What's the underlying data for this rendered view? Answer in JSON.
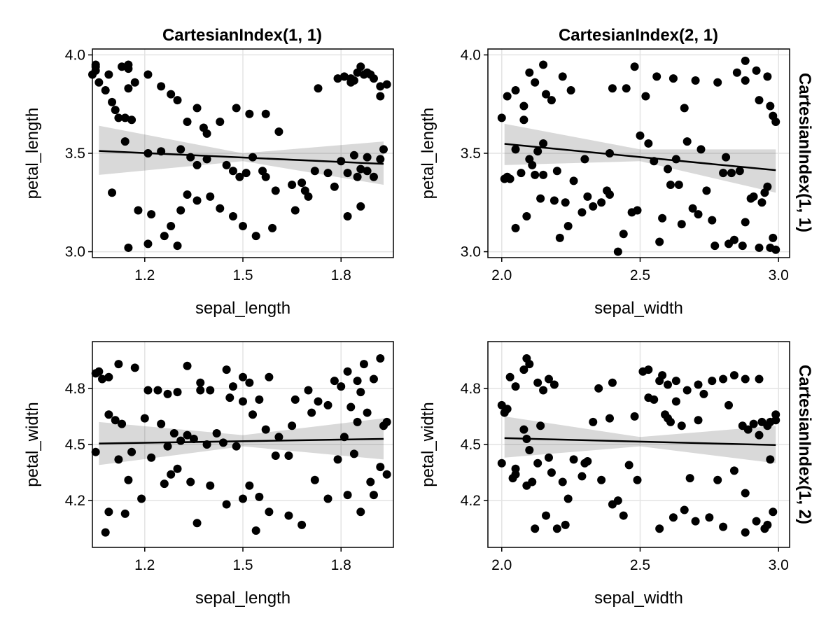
{
  "figure": {
    "column_titles": [
      "CartesianIndex(1, 1)",
      "CartesianIndex(2, 1)"
    ],
    "row_titles": [
      "CartesianIndex(1, 1)",
      "CartesianIndex(1, 2)"
    ]
  },
  "chart_data": [
    {
      "type": "scatter",
      "panel": "top-left",
      "xlabel": "sepal_length",
      "ylabel": "petal_length",
      "xlim": [
        1.04,
        1.96
      ],
      "ylim": [
        2.97,
        4.03
      ],
      "xticks": [
        1.2,
        1.5,
        1.8
      ],
      "xtick_labels": [
        "1.2",
        "1.5",
        "1.8"
      ],
      "yticks": [
        3.0,
        3.5,
        4.0
      ],
      "ytick_labels": [
        "3.0",
        "3.5",
        "4.0"
      ],
      "grid": true,
      "fit_line": [
        [
          1.06,
          3.512
        ],
        [
          1.93,
          3.446
        ]
      ],
      "confidence_band": {
        "x": [
          1.06,
          1.5,
          1.93
        ],
        "lower": [
          3.39,
          3.46,
          3.34
        ],
        "upper": [
          3.64,
          3.5,
          3.56
        ]
      },
      "x": [
        1.05,
        1.06,
        1.08,
        1.1,
        1.11,
        1.12,
        1.14,
        1.15,
        1.15,
        1.13,
        1.09,
        1.04,
        1.05,
        1.05,
        1.15,
        1.17,
        1.21,
        1.25,
        1.28,
        1.3,
        1.33,
        1.36,
        1.38,
        1.39,
        1.43,
        1.48,
        1.52,
        1.57,
        1.61,
        1.73,
        1.79,
        1.83,
        1.87,
        1.9,
        1.92,
        1.84,
        1.81,
        1.92,
        1.94,
        1.89,
        1.85,
        1.83,
        1.88,
        1.86,
        1.14,
        1.16,
        1.21,
        1.25,
        1.31,
        1.34,
        1.36,
        1.39,
        1.45,
        1.47,
        1.49,
        1.51,
        1.53,
        1.56,
        1.57,
        1.6,
        1.65,
        1.68,
        1.72,
        1.76,
        1.8,
        1.84,
        1.88,
        1.93,
        1.92,
        1.1,
        1.18,
        1.22,
        1.28,
        1.31,
        1.33,
        1.36,
        1.4,
        1.43,
        1.47,
        1.5,
        1.54,
        1.59,
        1.66,
        1.7,
        1.69,
        1.78,
        1.82,
        1.85,
        1.86,
        1.88,
        1.9,
        1.86,
        1.82,
        1.15,
        1.21,
        1.26,
        1.3
      ],
      "y": [
        3.94,
        3.86,
        3.82,
        3.76,
        3.72,
        3.68,
        3.68,
        3.95,
        3.93,
        3.94,
        3.9,
        3.9,
        3.95,
        3.92,
        3.83,
        3.86,
        3.9,
        3.84,
        3.8,
        3.77,
        3.66,
        3.73,
        3.63,
        3.6,
        3.66,
        3.73,
        3.7,
        3.7,
        3.61,
        3.83,
        3.88,
        3.86,
        3.9,
        3.88,
        3.84,
        3.87,
        3.89,
        3.79,
        3.85,
        3.9,
        3.91,
        3.88,
        3.91,
        3.94,
        3.56,
        3.67,
        3.5,
        3.51,
        3.52,
        3.48,
        3.44,
        3.47,
        3.44,
        3.41,
        3.38,
        3.4,
        3.48,
        3.41,
        3.38,
        3.31,
        3.34,
        3.35,
        3.41,
        3.4,
        3.46,
        3.49,
        3.48,
        3.52,
        3.47,
        3.3,
        3.21,
        3.19,
        3.13,
        3.21,
        3.29,
        3.26,
        3.28,
        3.22,
        3.18,
        3.13,
        3.08,
        3.12,
        3.21,
        3.28,
        3.31,
        3.33,
        3.4,
        3.38,
        3.42,
        3.41,
        3.38,
        3.23,
        3.18,
        3.02,
        3.04,
        3.08,
        3.03
      ]
    },
    {
      "type": "scatter",
      "panel": "top-right",
      "xlabel": "sepal_width",
      "ylabel": "petal_length",
      "xlim": [
        1.95,
        3.04
      ],
      "ylim": [
        2.97,
        4.03
      ],
      "xticks": [
        2.0,
        2.5,
        3.0
      ],
      "xtick_labels": [
        "2.0",
        "2.5",
        "3.0"
      ],
      "yticks": [
        3.0,
        3.5,
        4.0
      ],
      "ytick_labels": [
        "3.0",
        "3.5",
        "4.0"
      ],
      "grid": true,
      "fit_line": [
        [
          2.01,
          3.548
        ],
        [
          2.99,
          3.414
        ]
      ],
      "confidence_band": {
        "x": [
          2.01,
          2.5,
          2.99
        ],
        "lower": [
          3.44,
          3.46,
          3.3
        ],
        "upper": [
          3.65,
          3.52,
          3.52
        ]
      },
      "x": [
        2.0,
        2.02,
        2.05,
        2.08,
        2.1,
        2.12,
        2.15,
        2.18,
        2.22,
        2.25,
        2.4,
        2.48,
        2.52,
        2.56,
        2.62,
        2.7,
        2.78,
        2.85,
        2.88,
        2.92,
        2.96,
        2.98,
        2.99,
        2.88,
        2.93,
        2.97,
        2.02,
        2.05,
        2.08,
        2.1,
        2.13,
        2.16,
        2.2,
        2.26,
        2.3,
        2.38,
        2.45,
        2.5,
        2.55,
        2.6,
        2.63,
        2.66,
        2.72,
        2.8,
        2.86,
        2.91,
        2.96,
        2.03,
        2.07,
        2.11,
        2.14,
        2.19,
        2.24,
        2.33,
        2.39,
        2.44,
        2.49,
        2.57,
        2.61,
        2.65,
        2.69,
        2.74,
        2.82,
        2.88,
        2.93,
        2.98,
        2.05,
        2.09,
        2.15,
        2.21,
        2.29,
        2.36,
        2.42,
        2.47,
        2.58,
        2.64,
        2.71,
        2.77,
        2.84,
        2.9,
        2.95,
        2.99,
        2.01,
        2.12,
        2.23,
        2.39,
        2.53,
        2.67,
        2.81,
        2.94,
        2.97,
        2.87,
        2.83,
        2.76,
        2.31,
        2.15
      ],
      "y": [
        3.68,
        3.79,
        3.82,
        3.74,
        3.91,
        3.86,
        3.95,
        3.77,
        3.89,
        3.82,
        3.83,
        3.94,
        3.79,
        3.89,
        3.88,
        3.87,
        3.86,
        3.91,
        3.97,
        3.92,
        3.89,
        3.69,
        3.66,
        3.87,
        3.77,
        3.74,
        3.38,
        3.52,
        3.67,
        3.47,
        3.51,
        3.8,
        3.41,
        3.36,
        3.47,
        3.31,
        3.83,
        3.59,
        3.46,
        3.42,
        3.47,
        3.73,
        3.52,
        3.4,
        3.41,
        3.28,
        3.33,
        3.37,
        3.4,
        3.44,
        3.27,
        3.26,
        3.13,
        3.23,
        3.29,
        3.09,
        3.21,
        3.05,
        3.34,
        3.14,
        3.22,
        3.31,
        3.04,
        3.15,
        3.02,
        3.07,
        3.12,
        3.18,
        3.39,
        3.07,
        3.2,
        3.25,
        3.0,
        3.2,
        3.17,
        3.34,
        3.19,
        3.03,
        3.06,
        3.27,
        3.3,
        3.01,
        3.37,
        3.39,
        3.25,
        3.5,
        3.55,
        3.56,
        3.48,
        3.25,
        3.02,
        3.03,
        3.4,
        3.16,
        3.28,
        3.55
      ]
    },
    {
      "type": "scatter",
      "panel": "bottom-left",
      "xlabel": "sepal_length",
      "ylabel": "petal_width",
      "xlim": [
        1.04,
        1.96
      ],
      "ylim": [
        3.95,
        5.05
      ],
      "xticks": [
        1.2,
        1.5,
        1.8
      ],
      "xtick_labels": [
        "1.2",
        "1.5",
        "1.8"
      ],
      "yticks": [
        4.2,
        4.5,
        4.8
      ],
      "ytick_labels": [
        "4.2",
        "4.5",
        "4.8"
      ],
      "grid": true,
      "fit_line": [
        [
          1.06,
          4.505
        ],
        [
          1.93,
          4.53
        ]
      ],
      "confidence_band": {
        "x": [
          1.06,
          1.5,
          1.93
        ],
        "lower": [
          4.39,
          4.49,
          4.42
        ],
        "upper": [
          4.62,
          4.55,
          4.64
        ]
      },
      "x": [
        1.05,
        1.06,
        1.07,
        1.09,
        1.12,
        1.17,
        1.21,
        1.24,
        1.27,
        1.3,
        1.33,
        1.37,
        1.4,
        1.45,
        1.47,
        1.5,
        1.52,
        1.55,
        1.58,
        1.66,
        1.7,
        1.73,
        1.78,
        1.82,
        1.85,
        1.87,
        1.9,
        1.92,
        1.86,
        1.83,
        1.09,
        1.11,
        1.13,
        1.2,
        1.25,
        1.29,
        1.33,
        1.37,
        1.42,
        1.46,
        1.5,
        1.53,
        1.57,
        1.61,
        1.65,
        1.71,
        1.76,
        1.8,
        1.85,
        1.88,
        1.93,
        1.94,
        1.05,
        1.12,
        1.16,
        1.22,
        1.27,
        1.31,
        1.35,
        1.39,
        1.44,
        1.48,
        1.52,
        1.55,
        1.6,
        1.64,
        1.72,
        1.79,
        1.81,
        1.84,
        1.89,
        1.94,
        1.09,
        1.15,
        1.19,
        1.26,
        1.3,
        1.34,
        1.4,
        1.45,
        1.5,
        1.54,
        1.58,
        1.64,
        1.68,
        1.76,
        1.82,
        1.86,
        1.9,
        1.92,
        1.08,
        1.14,
        1.28,
        1.36
      ],
      "y": [
        4.88,
        4.89,
        4.85,
        4.86,
        4.93,
        4.91,
        4.79,
        4.79,
        4.77,
        4.78,
        4.92,
        4.83,
        4.79,
        4.9,
        4.81,
        4.86,
        4.83,
        4.74,
        4.86,
        4.74,
        4.79,
        4.73,
        4.84,
        4.89,
        4.84,
        4.93,
        4.85,
        4.96,
        4.78,
        4.7,
        4.66,
        4.63,
        4.61,
        4.64,
        4.61,
        4.56,
        4.55,
        4.79,
        4.56,
        4.75,
        4.73,
        4.66,
        4.58,
        4.54,
        4.6,
        4.67,
        4.71,
        4.81,
        4.62,
        4.67,
        4.6,
        4.62,
        4.46,
        4.42,
        4.46,
        4.43,
        4.49,
        4.52,
        4.53,
        4.5,
        4.51,
        4.49,
        4.28,
        4.22,
        4.44,
        4.44,
        4.31,
        4.42,
        4.54,
        4.45,
        4.3,
        4.34,
        4.14,
        4.31,
        4.21,
        4.29,
        4.37,
        4.3,
        4.28,
        4.18,
        4.21,
        4.04,
        4.14,
        4.12,
        4.07,
        4.21,
        4.23,
        4.14,
        4.23,
        4.38,
        4.03,
        4.13,
        4.34,
        4.08
      ]
    },
    {
      "type": "scatter",
      "panel": "bottom-right",
      "xlabel": "sepal_width",
      "ylabel": "petal_width",
      "xlim": [
        1.95,
        3.04
      ],
      "ylim": [
        3.95,
        5.05
      ],
      "xticks": [
        2.0,
        2.5,
        3.0
      ],
      "xtick_labels": [
        "2.0",
        "2.5",
        "3.0"
      ],
      "yticks": [
        4.2,
        4.5,
        4.8
      ],
      "ytick_labels": [
        "4.2",
        "4.5",
        "4.8"
      ],
      "grid": true,
      "fit_line": [
        [
          2.01,
          4.534
        ],
        [
          2.99,
          4.497
        ]
      ],
      "confidence_band": {
        "x": [
          2.01,
          2.5,
          2.99
        ],
        "lower": [
          4.43,
          4.49,
          4.4
        ],
        "upper": [
          4.65,
          4.54,
          4.6
        ]
      },
      "x": [
        2.03,
        2.05,
        2.08,
        2.09,
        2.1,
        2.13,
        2.15,
        2.17,
        2.19,
        2.35,
        2.4,
        2.51,
        2.53,
        2.57,
        2.58,
        2.6,
        2.63,
        2.67,
        2.71,
        2.76,
        2.8,
        2.84,
        2.88,
        2.93,
        2.96,
        2.99,
        2.0,
        2.01,
        2.05,
        2.08,
        2.11,
        2.14,
        2.17,
        2.26,
        2.31,
        2.39,
        2.48,
        2.55,
        2.6,
        2.65,
        2.71,
        2.82,
        2.87,
        2.91,
        2.94,
        2.97,
        2.99,
        2.02,
        2.05,
        2.09,
        2.13,
        2.18,
        2.22,
        2.29,
        2.33,
        2.42,
        2.46,
        2.53,
        2.59,
        2.63,
        2.68,
        2.73,
        2.78,
        2.84,
        2.89,
        2.93,
        2.97,
        2.0,
        2.04,
        2.09,
        2.12,
        2.16,
        2.2,
        2.24,
        2.3,
        2.36,
        2.4,
        2.49,
        2.57,
        2.61,
        2.66,
        2.7,
        2.75,
        2.8,
        2.88,
        2.92,
        2.96,
        2.98,
        2.1,
        2.23,
        2.44,
        2.62,
        2.88,
        2.95
      ],
      "y": [
        4.86,
        4.81,
        4.9,
        4.96,
        4.93,
        4.83,
        4.79,
        4.85,
        4.82,
        4.8,
        4.83,
        4.89,
        4.9,
        4.84,
        4.87,
        4.82,
        4.84,
        4.79,
        4.82,
        4.84,
        4.85,
        4.87,
        4.85,
        4.85,
        4.6,
        4.63,
        4.71,
        4.67,
        4.34,
        4.58,
        4.3,
        4.6,
        4.43,
        4.42,
        4.41,
        4.64,
        4.65,
        4.74,
        4.64,
        4.6,
        4.63,
        4.71,
        4.6,
        4.61,
        4.62,
        4.62,
        4.66,
        4.69,
        4.37,
        4.28,
        4.4,
        4.35,
        4.3,
        4.33,
        4.62,
        4.2,
        4.39,
        4.75,
        4.66,
        4.73,
        4.32,
        4.77,
        4.31,
        4.36,
        4.58,
        4.55,
        4.42,
        4.4,
        4.32,
        4.53,
        4.05,
        4.12,
        4.05,
        4.21,
        4.4,
        4.31,
        4.18,
        4.31,
        4.05,
        4.62,
        4.15,
        4.09,
        4.11,
        4.06,
        4.03,
        4.09,
        4.07,
        4.14,
        4.47,
        4.07,
        4.12,
        4.11,
        4.24,
        4.05
      ]
    }
  ]
}
